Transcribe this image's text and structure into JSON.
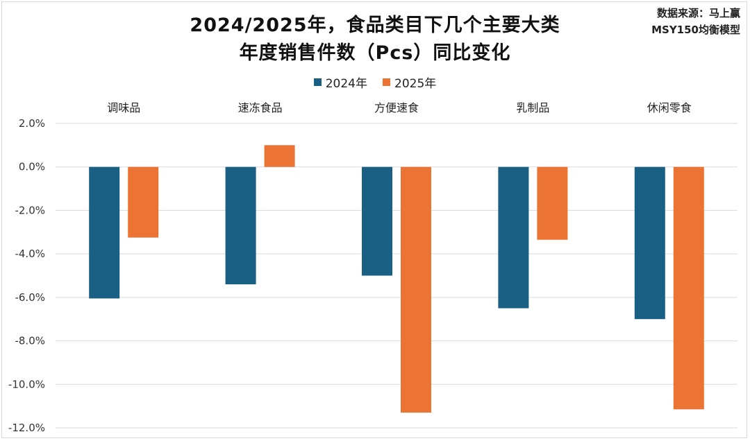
{
  "header": {
    "title_line1": "2024/2025年，食品类目下几个主要大类",
    "title_line2": "年度销售件数（Pcs）同比变化",
    "source_line1": "数据来源：马上赢",
    "source_line2": "MSY150均衡模型"
  },
  "chart_data": {
    "type": "bar",
    "title": "2024/2025年，食品类目下几个主要大类 年度销售件数（Pcs）同比变化",
    "xlabel": "",
    "ylabel": "",
    "categories": [
      "调味品",
      "速冻食品",
      "方便速食",
      "乳制品",
      "休闲零食"
    ],
    "series": [
      {
        "name": "2024年",
        "color": "#1a5f84",
        "values": [
          -6.05,
          -5.4,
          -5.0,
          -6.5,
          -7.0
        ]
      },
      {
        "name": "2025年",
        "color": "#eb7434",
        "values": [
          -3.25,
          1.0,
          -11.3,
          -3.35,
          -11.15
        ]
      }
    ],
    "ylim": [
      -12.0,
      2.0
    ],
    "yticks": [
      2.0,
      0.0,
      -2.0,
      -4.0,
      -6.0,
      -8.0,
      -10.0,
      -12.0
    ],
    "ytick_labels": [
      "2.0%",
      "0.0%",
      "-2.0%",
      "-4.0%",
      "-6.0%",
      "-8.0%",
      "-10.0%",
      "-12.0%"
    ],
    "grid": true,
    "legend_position": "top-center",
    "category_label_position": "top"
  }
}
